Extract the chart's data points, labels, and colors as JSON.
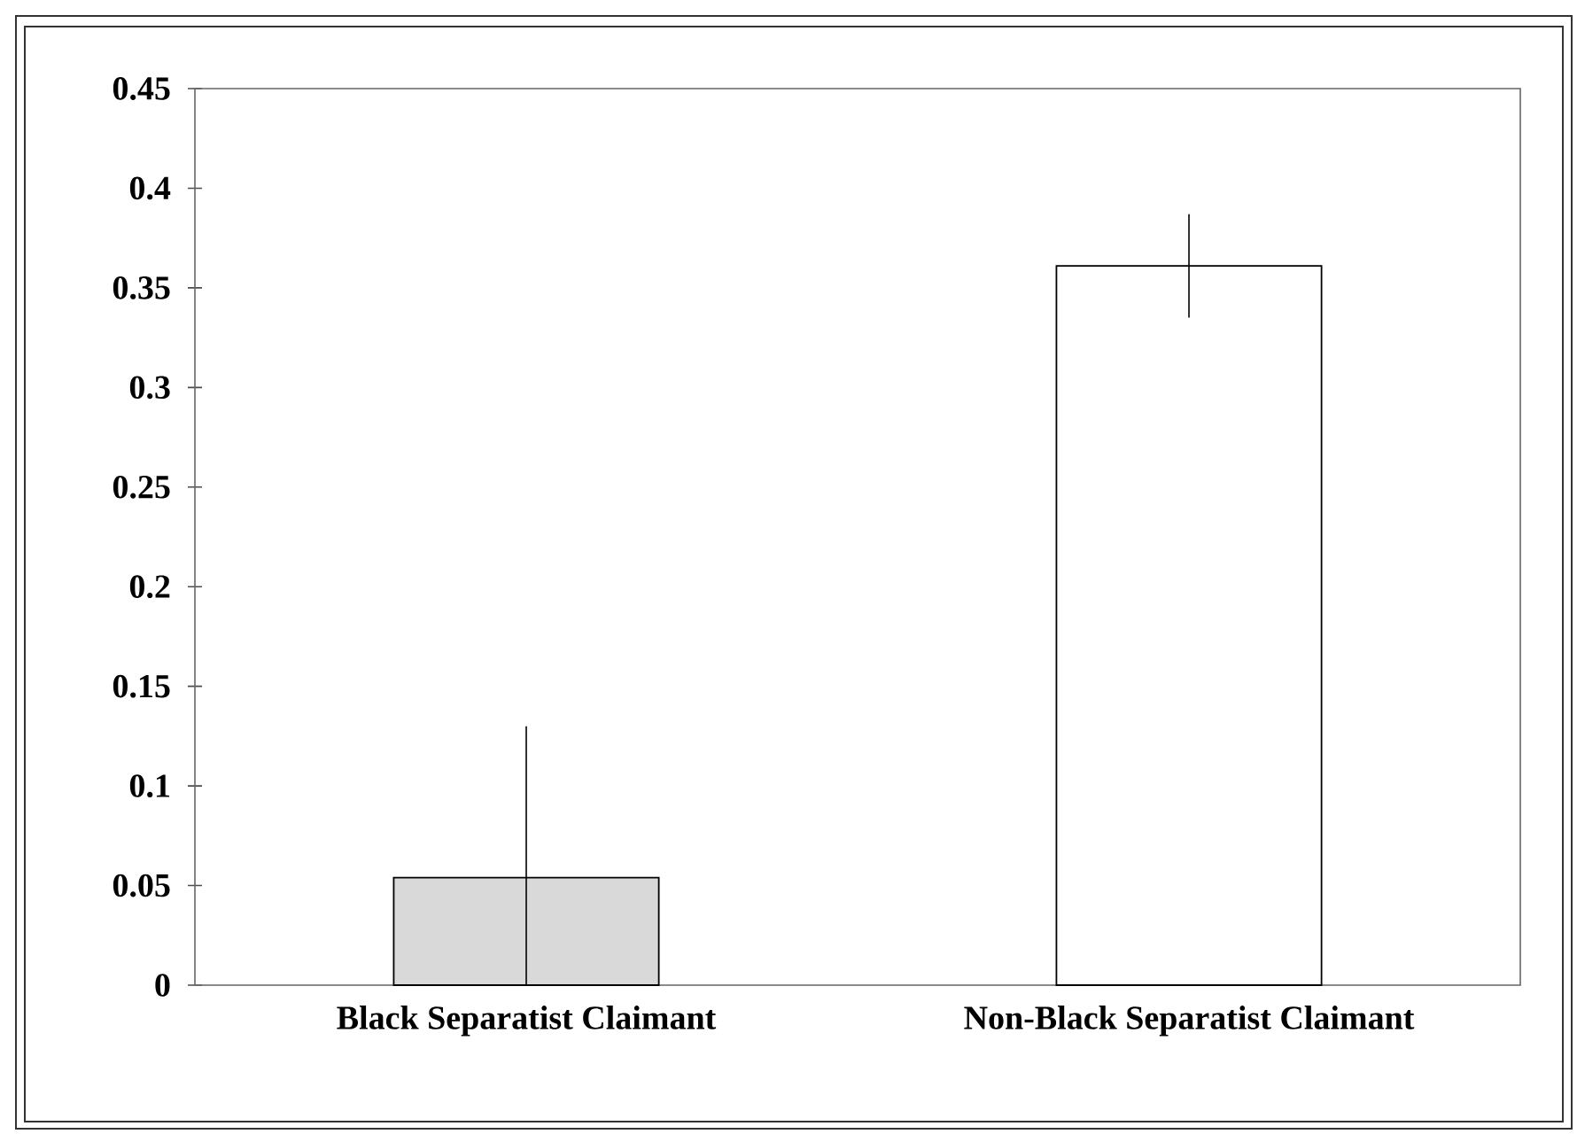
{
  "chart_data": {
    "type": "bar",
    "categories": [
      "Black Separatist Claimant",
      "Non-Black Separatist Claimant"
    ],
    "values": [
      0.054,
      0.361
    ],
    "colors": [
      "#d9d9d9",
      "#ffffff"
    ],
    "errors": [
      [
        0,
        0.13
      ],
      0.026
    ],
    "ylim": [
      0,
      0.45
    ],
    "yticks": [
      0,
      0.05,
      0.1,
      0.15,
      0.2,
      0.25,
      0.3,
      0.35,
      0.4,
      0.45
    ]
  }
}
